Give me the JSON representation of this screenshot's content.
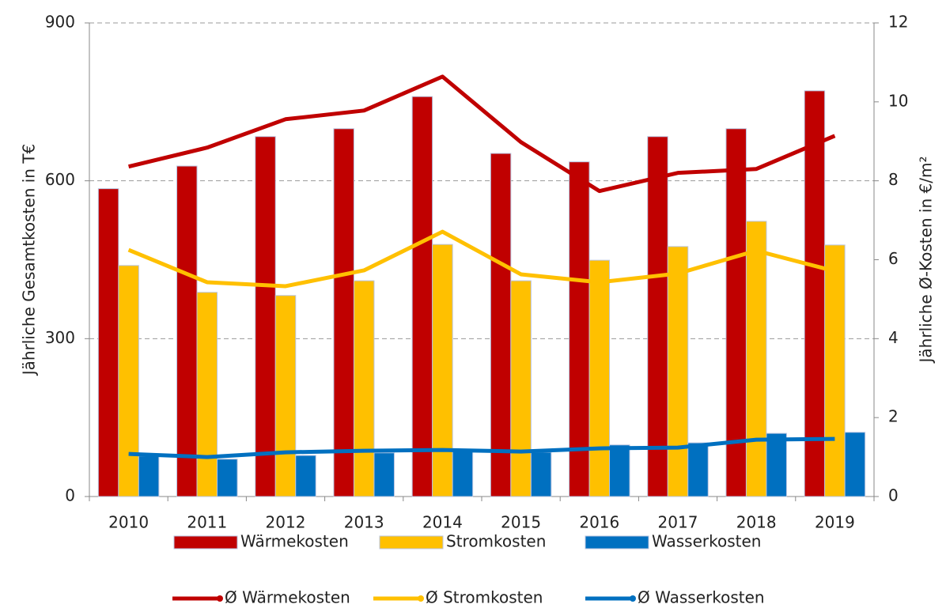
{
  "chart_data": {
    "type": "bar",
    "y_label": "Jährliche Gesamtkosten in T€",
    "y2_label": "Jährliche Ø-Kosten in €/m²",
    "categories": [
      "2010",
      "2011",
      "2012",
      "2013",
      "2014",
      "2015",
      "2016",
      "2017",
      "2018",
      "2019"
    ],
    "series": [
      {
        "name": "Wärmekosten",
        "type": "bar",
        "color": "#c00000",
        "values": [
          585,
          628,
          684,
          699,
          760,
          652,
          636,
          684,
          699,
          771
        ]
      },
      {
        "name": "Stromkosten",
        "type": "bar",
        "color": "#ffc000",
        "values": [
          439,
          388,
          382,
          410,
          479,
          410,
          449,
          475,
          523,
          478
        ]
      },
      {
        "name": "Wasserkosten",
        "type": "bar",
        "color": "#0070c0",
        "values": [
          77,
          71,
          78,
          83,
          89,
          84,
          98,
          102,
          120,
          122
        ]
      },
      {
        "name": "Ø Wärmekosten",
        "type": "line",
        "axis": "y2",
        "color": "#c00000",
        "values": [
          8.36,
          8.84,
          9.56,
          9.78,
          10.64,
          8.98,
          7.74,
          8.2,
          8.3,
          9.14
        ]
      },
      {
        "name": "Ø Stromkosten",
        "type": "line",
        "axis": "y2",
        "color": "#ffc000",
        "values": [
          6.25,
          5.43,
          5.33,
          5.73,
          6.71,
          5.63,
          5.43,
          5.65,
          6.23,
          5.71
        ]
      },
      {
        "name": "Ø Wasserkosten",
        "type": "line",
        "axis": "y2",
        "color": "#0070c0",
        "values": [
          1.08,
          1.0,
          1.12,
          1.16,
          1.18,
          1.14,
          1.22,
          1.24,
          1.44,
          1.46
        ]
      }
    ],
    "ylim": [
      0,
      900
    ],
    "yticks": [
      0,
      300,
      600,
      900
    ],
    "y2lim": [
      0,
      12
    ],
    "y2ticks": [
      0,
      2,
      4,
      6,
      8,
      10,
      12
    ],
    "grid": true
  }
}
